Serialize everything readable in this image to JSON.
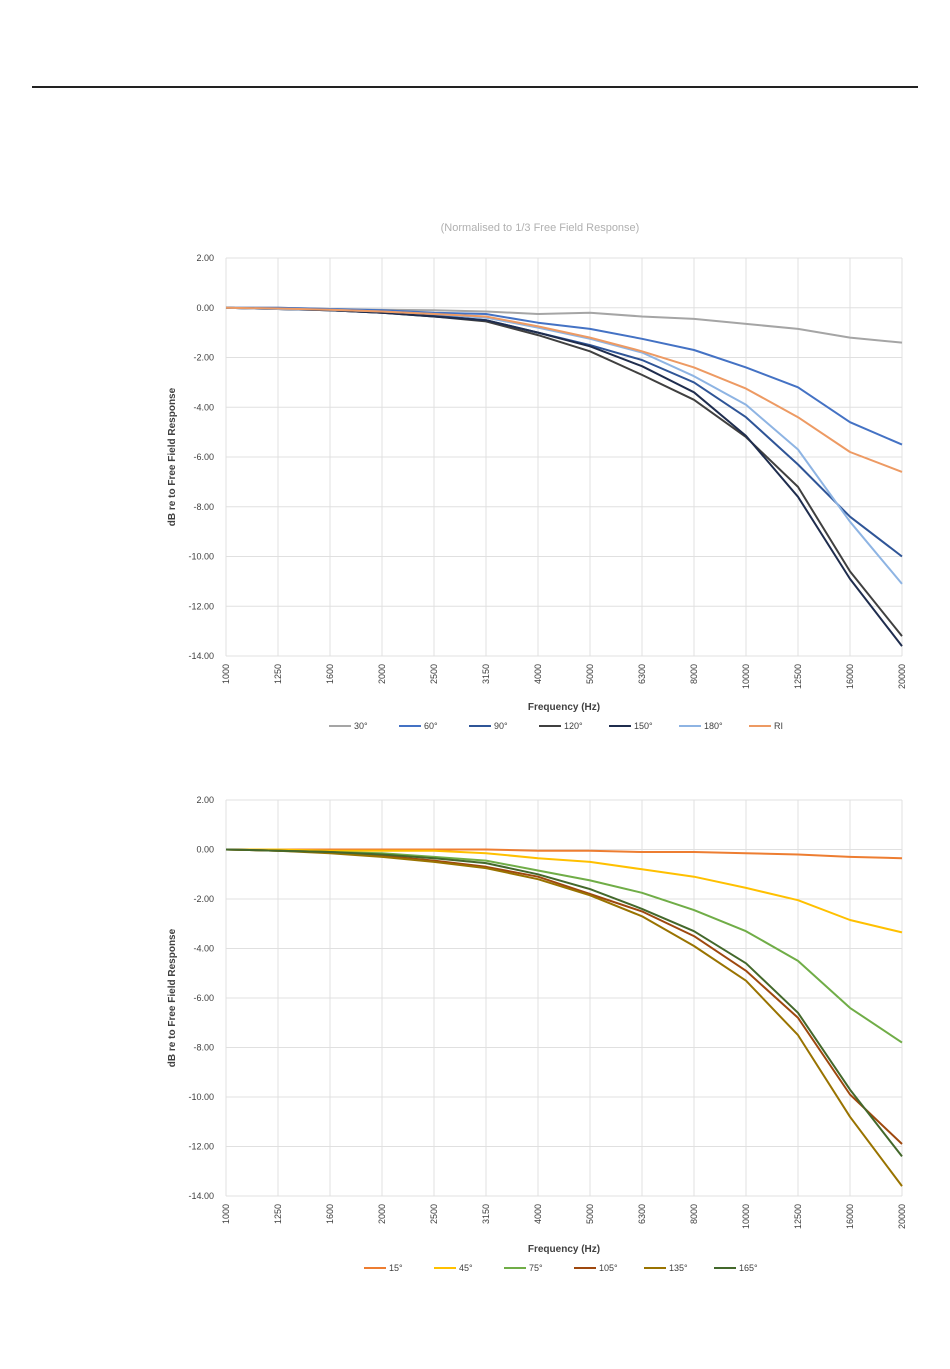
{
  "chart_data": [
    {
      "type": "line",
      "title": "(Normalised to 1/3 Free Field Response)",
      "xlabel": "Frequency (Hz)",
      "ylabel": "dB re to Free Field Response",
      "x": [
        "1000",
        "1250",
        "1600",
        "2000",
        "2500",
        "3150",
        "4000",
        "5000",
        "6300",
        "8000",
        "10000",
        "12500",
        "16000",
        "20000"
      ],
      "ylim": [
        -14,
        2
      ],
      "yticks": [
        "2.00",
        "0.00",
        "-2.00",
        "-4.00",
        "-6.00",
        "-8.00",
        "-10.00",
        "-12.00",
        "-14.00"
      ],
      "grid": true,
      "legend": "bottom",
      "series": [
        {
          "name": "30°",
          "color": "#a5a5a5",
          "values": [
            0,
            0,
            -0.05,
            -0.08,
            -0.1,
            -0.15,
            -0.25,
            -0.2,
            -0.35,
            -0.45,
            -0.65,
            -0.85,
            -1.2,
            -1.4
          ]
        },
        {
          "name": "60°",
          "color": "#4472c4",
          "values": [
            0,
            0,
            -0.05,
            -0.1,
            -0.2,
            -0.25,
            -0.6,
            -0.85,
            -1.25,
            -1.7,
            -2.4,
            -3.2,
            -4.6,
            -5.5
          ]
        },
        {
          "name": "90°",
          "color": "#2f5597",
          "values": [
            0,
            -0.05,
            -0.1,
            -0.2,
            -0.3,
            -0.5,
            -1.0,
            -1.5,
            -2.1,
            -3.0,
            -4.4,
            -6.3,
            -8.4,
            -10.0
          ]
        },
        {
          "name": "120°",
          "color": "#404040",
          "values": [
            0,
            -0.05,
            -0.1,
            -0.2,
            -0.35,
            -0.55,
            -1.1,
            -1.75,
            -2.7,
            -3.7,
            -5.2,
            -7.2,
            -10.6,
            -13.2
          ]
        },
        {
          "name": "150°",
          "color": "#1f2d4e",
          "values": [
            0,
            -0.05,
            -0.1,
            -0.2,
            -0.35,
            -0.5,
            -1.0,
            -1.55,
            -2.35,
            -3.4,
            -5.15,
            -7.6,
            -10.9,
            -13.6
          ]
        },
        {
          "name": "180°",
          "color": "#8eb4e3",
          "values": [
            0,
            -0.05,
            -0.08,
            -0.15,
            -0.25,
            -0.4,
            -0.8,
            -1.25,
            -1.8,
            -2.75,
            -3.9,
            -5.7,
            -8.6,
            -11.1
          ]
        },
        {
          "name": "RI",
          "color": "#ed9a63",
          "values": [
            0,
            -0.03,
            -0.08,
            -0.15,
            -0.25,
            -0.35,
            -0.75,
            -1.2,
            -1.75,
            -2.4,
            -3.25,
            -4.4,
            -5.8,
            -6.6
          ]
        }
      ]
    },
    {
      "type": "line",
      "title": "",
      "xlabel": "Frequency (Hz)",
      "ylabel": "dB re to Free Field Response",
      "x": [
        "1000",
        "1250",
        "1600",
        "2000",
        "2500",
        "3150",
        "4000",
        "5000",
        "6300",
        "8000",
        "10000",
        "12500",
        "16000",
        "20000"
      ],
      "ylim": [
        -14,
        2
      ],
      "yticks": [
        "2.00",
        "0.00",
        "-2.00",
        "-4.00",
        "-6.00",
        "-8.00",
        "-10.00",
        "-12.00",
        "-14.00"
      ],
      "grid": true,
      "legend": "bottom",
      "series": [
        {
          "name": "15°",
          "color": "#ed7d31",
          "values": [
            0,
            0,
            0,
            0,
            0,
            0,
            -0.05,
            -0.05,
            -0.1,
            -0.1,
            -0.15,
            -0.2,
            -0.3,
            -0.35
          ]
        },
        {
          "name": "45°",
          "color": "#ffc000",
          "values": [
            0,
            0,
            -0.05,
            -0.05,
            -0.05,
            -0.15,
            -0.35,
            -0.5,
            -0.8,
            -1.1,
            -1.55,
            -2.05,
            -2.85,
            -3.35
          ]
        },
        {
          "name": "75°",
          "color": "#70ad47",
          "values": [
            0,
            -0.05,
            -0.1,
            -0.15,
            -0.3,
            -0.45,
            -0.85,
            -1.25,
            -1.75,
            -2.45,
            -3.3,
            -4.5,
            -6.4,
            -7.8
          ]
        },
        {
          "name": "105°",
          "color": "#9e480e",
          "values": [
            0,
            -0.05,
            -0.1,
            -0.25,
            -0.45,
            -0.7,
            -1.1,
            -1.8,
            -2.5,
            -3.5,
            -4.9,
            -6.8,
            -9.9,
            -11.9
          ]
        },
        {
          "name": "135°",
          "color": "#997300",
          "values": [
            0,
            -0.05,
            -0.15,
            -0.3,
            -0.5,
            -0.75,
            -1.2,
            -1.85,
            -2.7,
            -3.9,
            -5.3,
            -7.5,
            -10.8,
            -13.6
          ]
        },
        {
          "name": "165°",
          "color": "#43682b",
          "values": [
            0,
            -0.05,
            -0.1,
            -0.2,
            -0.35,
            -0.55,
            -1.0,
            -1.6,
            -2.4,
            -3.3,
            -4.6,
            -6.6,
            -9.7,
            -12.4
          ]
        }
      ]
    }
  ]
}
